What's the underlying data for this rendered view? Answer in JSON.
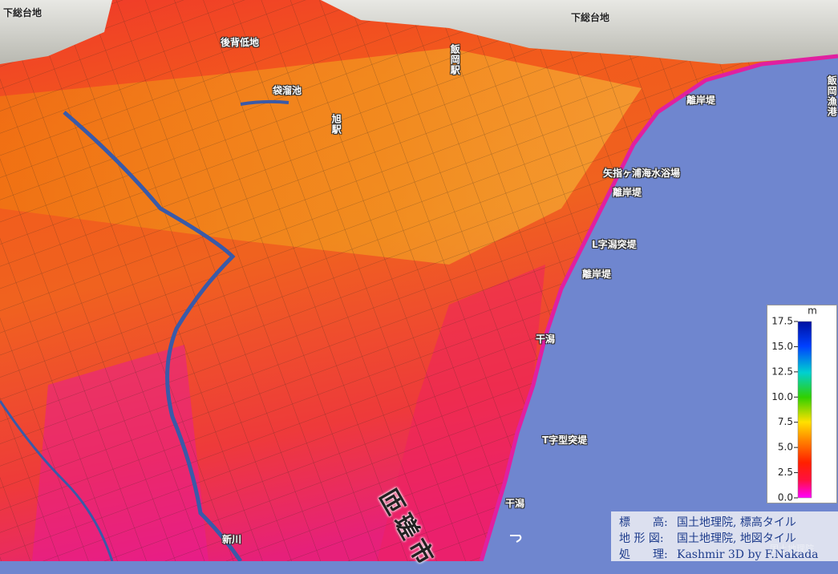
{
  "labels": [
    "下総台地",
    "下総台地",
    "後背低地",
    "飯岡駅",
    "袋溜池",
    "旭駅",
    "離岸堤",
    "飯岡漁港",
    "矢指ヶ浦海水浴場",
    "離岸堤",
    "L字潟突堤",
    "離岸堤",
    "干潟",
    "T字型突堤",
    "干潟",
    "新川",
    "匝瑳市"
  ],
  "legend": {
    "unit": "m",
    "ylim": [
      0,
      17.5
    ],
    "yticks": [
      {
        "value": 0,
        "label": "0.0"
      },
      2.5,
      {
        "value": 5,
        "label": "5.0"
      },
      7.5,
      {
        "value": 10,
        "label": "10.0"
      },
      12.5,
      {
        "value": 15,
        "label": "15.0"
      },
      17.5
    ]
  },
  "credits": [
    [
      "標　　高:",
      "国土地理院, 標高タイル"
    ],
    [
      "地 形 図:",
      "国土地理院, 地図タイル"
    ],
    [
      "処　　理:",
      "Kashmir 3D by F.Nakada"
    ]
  ],
  "watermark": "国土地理院"
}
